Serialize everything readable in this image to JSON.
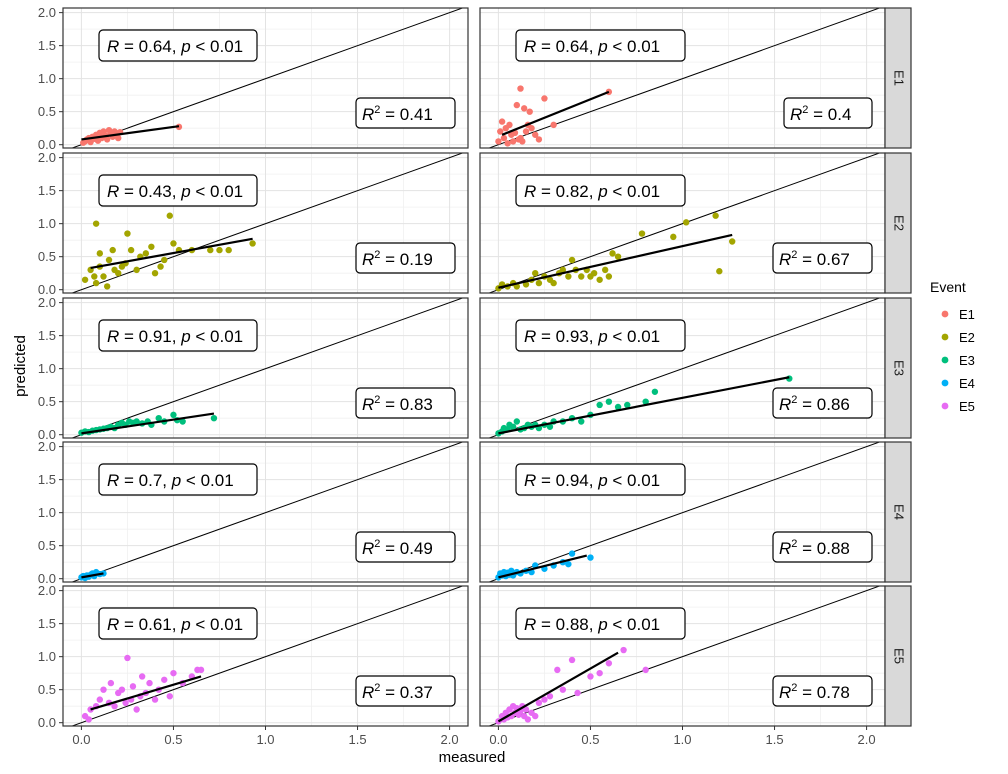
{
  "chart_data": {
    "type": "scatter",
    "xlabel": "measured",
    "ylabel": "predicted",
    "xlim": [
      -0.1,
      2.1
    ],
    "ylim": [
      -0.05,
      2.07
    ],
    "x_ticks": [
      "0.0",
      "0.5",
      "1.0",
      "1.5",
      "2.0"
    ],
    "y_ticks": [
      "0.0",
      "0.5",
      "1.0",
      "1.5",
      "2.0"
    ],
    "grid": true,
    "reference_line": "y = x",
    "legend": {
      "title": "Event",
      "position": "right",
      "entries": [
        {
          "label": "E1",
          "color": "#F8766D"
        },
        {
          "label": "E2",
          "color": "#A3A500"
        },
        {
          "label": "E3",
          "color": "#00BF7D"
        },
        {
          "label": "E4",
          "color": "#00B0F6"
        },
        {
          "label": "E5",
          "color": "#E76BF3"
        }
      ]
    },
    "facet_rows": [
      "E1",
      "E2",
      "E3",
      "E4",
      "E5"
    ],
    "facet_columns": 2,
    "panels": [
      {
        "row": "E1",
        "col": 0,
        "r": "0.64",
        "r2": "0.41",
        "fit": [
          [
            0.0,
            0.08
          ],
          [
            0.53,
            0.28
          ]
        ],
        "points": [
          [
            0.01,
            0.03
          ],
          [
            0.02,
            0.05
          ],
          [
            0.03,
            0.08
          ],
          [
            0.04,
            0.1
          ],
          [
            0.05,
            0.04
          ],
          [
            0.06,
            0.12
          ],
          [
            0.07,
            0.09
          ],
          [
            0.08,
            0.15
          ],
          [
            0.09,
            0.06
          ],
          [
            0.1,
            0.18
          ],
          [
            0.11,
            0.1
          ],
          [
            0.12,
            0.2
          ],
          [
            0.13,
            0.14
          ],
          [
            0.14,
            0.08
          ],
          [
            0.15,
            0.22
          ],
          [
            0.16,
            0.17
          ],
          [
            0.17,
            0.12
          ],
          [
            0.18,
            0.2
          ],
          [
            0.19,
            0.15
          ],
          [
            0.2,
            0.1
          ],
          [
            0.21,
            0.19
          ],
          [
            0.53,
            0.27
          ]
        ]
      },
      {
        "row": "E1",
        "col": 1,
        "r": "0.64",
        "r2": "0.4",
        "fit": [
          [
            0.02,
            0.15
          ],
          [
            0.6,
            0.8
          ]
        ],
        "points": [
          [
            0.0,
            0.05
          ],
          [
            0.01,
            0.2
          ],
          [
            0.02,
            0.35
          ],
          [
            0.03,
            0.1
          ],
          [
            0.04,
            0.25
          ],
          [
            0.05,
            0.02
          ],
          [
            0.06,
            0.3
          ],
          [
            0.07,
            0.15
          ],
          [
            0.08,
            0.05
          ],
          [
            0.09,
            0.18
          ],
          [
            0.1,
            0.6
          ],
          [
            0.11,
            0.08
          ],
          [
            0.12,
            0.1
          ],
          [
            0.13,
            0.05
          ],
          [
            0.14,
            0.55
          ],
          [
            0.15,
            0.2
          ],
          [
            0.16,
            0.3
          ],
          [
            0.17,
            0.5
          ],
          [
            0.18,
            0.25
          ],
          [
            0.2,
            0.15
          ],
          [
            0.22,
            0.08
          ],
          [
            0.25,
            0.7
          ],
          [
            0.12,
            0.85
          ],
          [
            0.3,
            0.3
          ],
          [
            0.6,
            0.8
          ]
        ]
      },
      {
        "row": "E2",
        "col": 0,
        "r": "0.43",
        "r2": "0.19",
        "fit": [
          [
            0.05,
            0.33
          ],
          [
            0.93,
            0.77
          ]
        ],
        "points": [
          [
            0.02,
            0.15
          ],
          [
            0.05,
            0.3
          ],
          [
            0.07,
            0.2
          ],
          [
            0.08,
            0.1
          ],
          [
            0.08,
            1.0
          ],
          [
            0.1,
            0.55
          ],
          [
            0.1,
            0.35
          ],
          [
            0.12,
            0.2
          ],
          [
            0.14,
            0.05
          ],
          [
            0.15,
            0.45
          ],
          [
            0.17,
            0.6
          ],
          [
            0.18,
            0.3
          ],
          [
            0.2,
            0.25
          ],
          [
            0.22,
            0.35
          ],
          [
            0.24,
            0.4
          ],
          [
            0.25,
            0.85
          ],
          [
            0.27,
            0.6
          ],
          [
            0.3,
            0.3
          ],
          [
            0.32,
            0.5
          ],
          [
            0.35,
            0.55
          ],
          [
            0.38,
            0.65
          ],
          [
            0.4,
            0.25
          ],
          [
            0.43,
            0.35
          ],
          [
            0.45,
            0.45
          ],
          [
            0.48,
            1.12
          ],
          [
            0.5,
            0.7
          ],
          [
            0.53,
            0.6
          ],
          [
            0.6,
            0.6
          ],
          [
            0.7,
            0.6
          ],
          [
            0.75,
            0.6
          ],
          [
            0.8,
            0.6
          ],
          [
            0.93,
            0.7
          ]
        ]
      },
      {
        "row": "E2",
        "col": 1,
        "r": "0.82",
        "r2": "0.67",
        "fit": [
          [
            0.0,
            0.03
          ],
          [
            1.27,
            0.83
          ]
        ],
        "points": [
          [
            0.0,
            0.02
          ],
          [
            0.02,
            0.08
          ],
          [
            0.05,
            0.05
          ],
          [
            0.08,
            0.1
          ],
          [
            0.1,
            0.05
          ],
          [
            0.15,
            0.08
          ],
          [
            0.18,
            0.15
          ],
          [
            0.2,
            0.25
          ],
          [
            0.22,
            0.1
          ],
          [
            0.25,
            0.2
          ],
          [
            0.28,
            0.15
          ],
          [
            0.3,
            0.1
          ],
          [
            0.33,
            0.25
          ],
          [
            0.35,
            0.3
          ],
          [
            0.38,
            0.2
          ],
          [
            0.4,
            0.45
          ],
          [
            0.42,
            0.3
          ],
          [
            0.45,
            0.2
          ],
          [
            0.48,
            0.3
          ],
          [
            0.5,
            0.2
          ],
          [
            0.52,
            0.25
          ],
          [
            0.55,
            0.15
          ],
          [
            0.58,
            0.3
          ],
          [
            0.6,
            0.2
          ],
          [
            0.62,
            0.55
          ],
          [
            0.65,
            0.5
          ],
          [
            0.78,
            0.85
          ],
          [
            0.95,
            0.8
          ],
          [
            1.02,
            1.02
          ],
          [
            1.18,
            1.12
          ],
          [
            1.2,
            0.28
          ],
          [
            1.27,
            0.73
          ]
        ]
      },
      {
        "row": "E3",
        "col": 0,
        "r": "0.91",
        "r2": "0.83",
        "fit": [
          [
            0.0,
            0.02
          ],
          [
            0.72,
            0.32
          ]
        ],
        "points": [
          [
            0.0,
            0.03
          ],
          [
            0.02,
            0.05
          ],
          [
            0.04,
            0.04
          ],
          [
            0.06,
            0.06
          ],
          [
            0.08,
            0.07
          ],
          [
            0.1,
            0.08
          ],
          [
            0.12,
            0.09
          ],
          [
            0.14,
            0.1
          ],
          [
            0.16,
            0.12
          ],
          [
            0.18,
            0.1
          ],
          [
            0.2,
            0.15
          ],
          [
            0.22,
            0.18
          ],
          [
            0.24,
            0.15
          ],
          [
            0.26,
            0.2
          ],
          [
            0.28,
            0.18
          ],
          [
            0.3,
            0.2
          ],
          [
            0.33,
            0.17
          ],
          [
            0.36,
            0.2
          ],
          [
            0.38,
            0.15
          ],
          [
            0.42,
            0.25
          ],
          [
            0.45,
            0.2
          ],
          [
            0.5,
            0.3
          ],
          [
            0.52,
            0.22
          ],
          [
            0.55,
            0.2
          ],
          [
            0.72,
            0.25
          ]
        ]
      },
      {
        "row": "E3",
        "col": 1,
        "r": "0.93",
        "r2": "0.86",
        "fit": [
          [
            0.0,
            0.02
          ],
          [
            1.58,
            0.87
          ]
        ],
        "points": [
          [
            0.0,
            0.02
          ],
          [
            0.02,
            0.05
          ],
          [
            0.03,
            0.1
          ],
          [
            0.05,
            0.08
          ],
          [
            0.06,
            0.15
          ],
          [
            0.08,
            0.12
          ],
          [
            0.1,
            0.2
          ],
          [
            0.12,
            0.08
          ],
          [
            0.14,
            0.1
          ],
          [
            0.16,
            0.15
          ],
          [
            0.18,
            0.12
          ],
          [
            0.2,
            0.15
          ],
          [
            0.22,
            0.1
          ],
          [
            0.25,
            0.15
          ],
          [
            0.28,
            0.12
          ],
          [
            0.3,
            0.2
          ],
          [
            0.35,
            0.2
          ],
          [
            0.4,
            0.25
          ],
          [
            0.45,
            0.2
          ],
          [
            0.5,
            0.3
          ],
          [
            0.55,
            0.45
          ],
          [
            0.6,
            0.5
          ],
          [
            0.65,
            0.42
          ],
          [
            0.7,
            0.45
          ],
          [
            0.8,
            0.5
          ],
          [
            0.85,
            0.65
          ],
          [
            1.58,
            0.85
          ]
        ]
      },
      {
        "row": "E4",
        "col": 0,
        "r": "0.7",
        "r2": "0.49",
        "fit": [
          [
            0.0,
            0.02
          ],
          [
            0.12,
            0.08
          ]
        ],
        "points": [
          [
            0.0,
            0.02
          ],
          [
            0.01,
            0.04
          ],
          [
            0.02,
            0.01
          ],
          [
            0.03,
            0.05
          ],
          [
            0.04,
            0.03
          ],
          [
            0.05,
            0.06
          ],
          [
            0.06,
            0.08
          ],
          [
            0.07,
            0.04
          ],
          [
            0.08,
            0.1
          ],
          [
            0.1,
            0.07
          ],
          [
            0.12,
            0.08
          ]
        ]
      },
      {
        "row": "E4",
        "col": 1,
        "r": "0.94",
        "r2": "0.88",
        "fit": [
          [
            0.0,
            0.02
          ],
          [
            0.48,
            0.35
          ]
        ],
        "points": [
          [
            0.0,
            0.02
          ],
          [
            0.01,
            0.08
          ],
          [
            0.02,
            0.05
          ],
          [
            0.03,
            0.1
          ],
          [
            0.04,
            0.04
          ],
          [
            0.05,
            0.09
          ],
          [
            0.06,
            0.06
          ],
          [
            0.07,
            0.12
          ],
          [
            0.08,
            0.05
          ],
          [
            0.1,
            0.1
          ],
          [
            0.12,
            0.08
          ],
          [
            0.15,
            0.12
          ],
          [
            0.18,
            0.1
          ],
          [
            0.2,
            0.2
          ],
          [
            0.25,
            0.15
          ],
          [
            0.3,
            0.2
          ],
          [
            0.35,
            0.25
          ],
          [
            0.38,
            0.22
          ],
          [
            0.4,
            0.38
          ],
          [
            0.5,
            0.32
          ]
        ]
      },
      {
        "row": "E5",
        "col": 0,
        "r": "0.61",
        "r2": "0.37",
        "fit": [
          [
            0.05,
            0.2
          ],
          [
            0.65,
            0.7
          ]
        ],
        "points": [
          [
            0.02,
            0.1
          ],
          [
            0.04,
            0.05
          ],
          [
            0.05,
            0.2
          ],
          [
            0.08,
            0.25
          ],
          [
            0.1,
            0.35
          ],
          [
            0.12,
            0.5
          ],
          [
            0.15,
            0.3
          ],
          [
            0.16,
            0.6
          ],
          [
            0.18,
            0.25
          ],
          [
            0.2,
            0.45
          ],
          [
            0.22,
            0.5
          ],
          [
            0.24,
            0.3
          ],
          [
            0.25,
            0.98
          ],
          [
            0.27,
            0.35
          ],
          [
            0.28,
            0.55
          ],
          [
            0.3,
            0.2
          ],
          [
            0.32,
            0.4
          ],
          [
            0.33,
            0.7
          ],
          [
            0.35,
            0.45
          ],
          [
            0.37,
            0.6
          ],
          [
            0.4,
            0.35
          ],
          [
            0.42,
            0.5
          ],
          [
            0.45,
            0.65
          ],
          [
            0.48,
            0.4
          ],
          [
            0.5,
            0.75
          ],
          [
            0.55,
            0.6
          ],
          [
            0.6,
            0.7
          ],
          [
            0.63,
            0.8
          ],
          [
            0.65,
            0.8
          ]
        ]
      },
      {
        "row": "E5",
        "col": 1,
        "r": "0.88",
        "r2": "0.78",
        "fit": [
          [
            0.0,
            0.02
          ],
          [
            0.65,
            1.06
          ]
        ],
        "points": [
          [
            0.0,
            0.02
          ],
          [
            0.02,
            0.1
          ],
          [
            0.03,
            0.05
          ],
          [
            0.04,
            0.15
          ],
          [
            0.05,
            0.08
          ],
          [
            0.06,
            0.2
          ],
          [
            0.07,
            0.1
          ],
          [
            0.08,
            0.25
          ],
          [
            0.09,
            0.15
          ],
          [
            0.1,
            0.22
          ],
          [
            0.11,
            0.12
          ],
          [
            0.12,
            0.18
          ],
          [
            0.13,
            0.25
          ],
          [
            0.14,
            0.1
          ],
          [
            0.15,
            0.2
          ],
          [
            0.16,
            0.05
          ],
          [
            0.18,
            0.15
          ],
          [
            0.2,
            0.1
          ],
          [
            0.22,
            0.3
          ],
          [
            0.25,
            0.35
          ],
          [
            0.28,
            0.4
          ],
          [
            0.32,
            0.8
          ],
          [
            0.35,
            0.5
          ],
          [
            0.4,
            0.95
          ],
          [
            0.43,
            0.45
          ],
          [
            0.5,
            0.7
          ],
          [
            0.55,
            0.75
          ],
          [
            0.6,
            0.9
          ],
          [
            0.68,
            1.1
          ],
          [
            0.8,
            0.8
          ]
        ]
      }
    ]
  }
}
